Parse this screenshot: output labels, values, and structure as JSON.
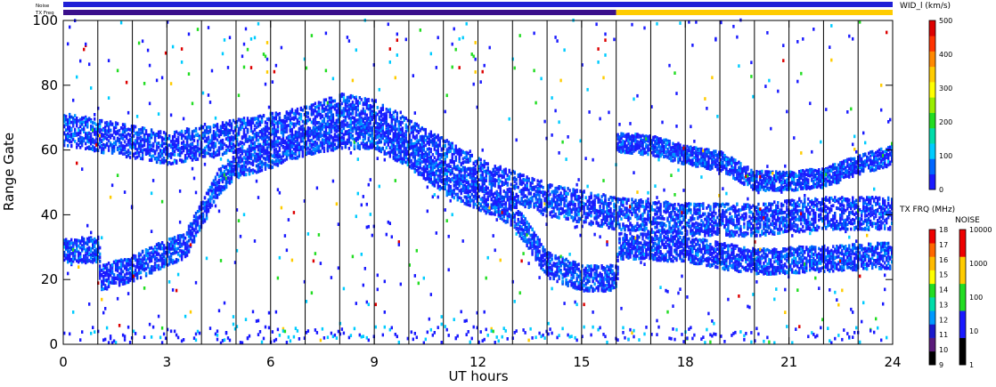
{
  "chart_data": {
    "type": "heatmap",
    "xlabel": "UT hours",
    "ylabel": "Range Gate",
    "xlim": [
      0,
      24
    ],
    "ylim": [
      0,
      100
    ],
    "x_ticks": [
      "0",
      "3",
      "6",
      "9",
      "12",
      "15",
      "18",
      "21",
      "24"
    ],
    "y_ticks": [
      "0",
      "20",
      "40",
      "60",
      "80",
      "100"
    ],
    "hour_gridlines": [
      1,
      2,
      3,
      4,
      5,
      6,
      7,
      8,
      9,
      10,
      11,
      12,
      13,
      14,
      15,
      16,
      17,
      18,
      19,
      20,
      21,
      22,
      23
    ],
    "grid": "vertical lines each hour",
    "status_bars": {
      "noise_label": "Noise",
      "freq_label": "TX Freq",
      "noise_color": "#1f1fd6",
      "freq_segments": [
        {
          "from": 0,
          "to": 16,
          "color": "#3a0f8c"
        },
        {
          "from": 16,
          "to": 24,
          "color": "#ffcc00"
        }
      ]
    },
    "width_colorbar": {
      "label": "WID_l (km/s)",
      "range": [
        0,
        500
      ],
      "ticks": [
        "0",
        "100",
        "200",
        "300",
        "400",
        "500"
      ],
      "colors": [
        "#1a1aff",
        "#0066ff",
        "#00ccff",
        "#00ddaa",
        "#22dd22",
        "#99ee00",
        "#ffff00",
        "#ffcc00",
        "#ff8800",
        "#ff3300",
        "#dd0000"
      ]
    },
    "freq_colorbar": {
      "label": "TX FRQ (MHz)",
      "ticks": [
        "9",
        "10",
        "11",
        "12",
        "13",
        "14",
        "15",
        "16",
        "17",
        "18"
      ],
      "colors": [
        "#000000",
        "#5a1a7a",
        "#1a1acc",
        "#0099ff",
        "#00ddaa",
        "#22dd22",
        "#ffff00",
        "#ffbb00",
        "#ff6600",
        "#ee0000"
      ]
    },
    "noise_colorbar": {
      "label": "NOISE",
      "ticks": [
        "1",
        "10",
        "100",
        "1000",
        "10000"
      ],
      "colors": [
        "#000000",
        "#1a1aff",
        "#22dd22",
        "#ffcc00",
        "#ee0000"
      ]
    },
    "echo_bands": [
      {
        "name": "lower-band",
        "points": [
          [
            0,
            28
          ],
          [
            1,
            29
          ],
          [
            1.05,
            20
          ],
          [
            2,
            23
          ],
          [
            3,
            28
          ],
          [
            3.5,
            30
          ],
          [
            4,
            40
          ],
          [
            4.5,
            50
          ],
          [
            5,
            55
          ],
          [
            6,
            58
          ],
          [
            7,
            62
          ],
          [
            8,
            64
          ],
          [
            9,
            64
          ],
          [
            10,
            58
          ],
          [
            11,
            50
          ],
          [
            12,
            45
          ],
          [
            13,
            40
          ],
          [
            13.5,
            32
          ],
          [
            14,
            24
          ],
          [
            15,
            20
          ],
          [
            16,
            20
          ],
          [
            16.05,
            30
          ],
          [
            18,
            29
          ],
          [
            20,
            25
          ],
          [
            22,
            26
          ],
          [
            24,
            27
          ]
        ],
        "spread": 4
      },
      {
        "name": "upper-band",
        "points": [
          [
            0,
            66
          ],
          [
            1,
            64
          ],
          [
            2,
            62
          ],
          [
            3,
            60
          ],
          [
            4,
            62
          ],
          [
            5,
            64
          ],
          [
            6,
            66
          ],
          [
            7,
            68
          ],
          [
            8,
            72
          ],
          [
            9,
            70
          ],
          [
            10,
            64
          ],
          [
            11,
            58
          ],
          [
            12,
            52
          ],
          [
            13,
            48
          ],
          [
            14,
            44
          ],
          [
            15,
            42
          ],
          [
            16,
            40
          ],
          [
            18,
            38
          ],
          [
            20,
            38
          ],
          [
            22,
            40
          ],
          [
            24,
            40
          ]
        ],
        "spread": 5
      },
      {
        "name": "post16-upper",
        "points": [
          [
            16,
            62
          ],
          [
            17,
            61
          ],
          [
            18,
            58
          ],
          [
            19,
            56
          ],
          [
            20,
            50
          ],
          [
            21,
            50
          ],
          [
            22,
            51
          ],
          [
            23,
            55
          ],
          [
            24,
            58
          ]
        ],
        "spread": 3
      }
    ]
  }
}
